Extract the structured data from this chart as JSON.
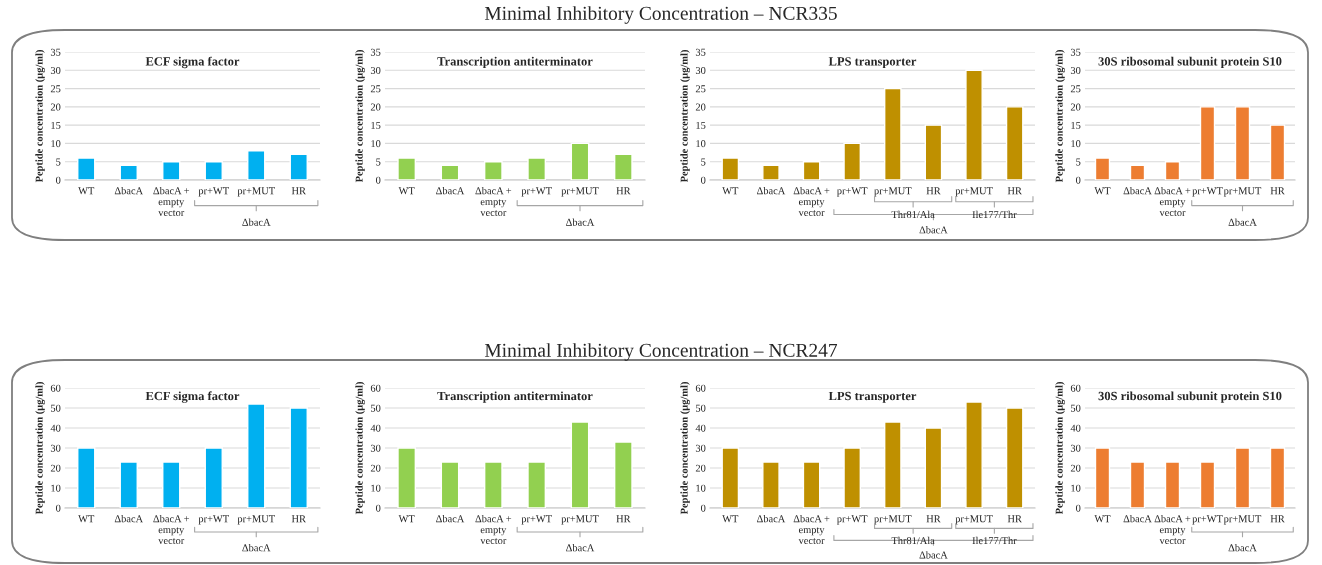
{
  "chart_data": [
    {
      "type": "bar",
      "title": "ECF sigma factor",
      "ylabel": "Peptide concentration (µg/ml)",
      "categories": [
        "WT",
        "ΔbacA",
        "ΔbacA +\nempty\nvector",
        "pr+WT",
        "pr+MUT",
        "HR"
      ],
      "values": [
        6,
        4,
        5,
        5,
        8,
        7
      ],
      "color": "#00b0f0",
      "ylim": [
        0,
        35
      ],
      "yticks": [
        0,
        5,
        10,
        15,
        20,
        25,
        30,
        35
      ],
      "grid": "y",
      "annotations": [
        "ΔbacA",
        "Minimal Inhibitory Concentration – NCR335"
      ]
    },
    {
      "type": "bar",
      "title": "Transcription antiterminator",
      "ylabel": "Peptide concentration (µg/ml)",
      "categories": [
        "WT",
        "ΔbacA",
        "ΔbacA +\nempty\nvector",
        "pr+WT",
        "pr+MUT",
        "HR"
      ],
      "values": [
        6,
        4,
        5,
        6,
        10,
        7
      ],
      "color": "#92d050",
      "ylim": [
        0,
        35
      ],
      "yticks": [
        0,
        5,
        10,
        15,
        20,
        25,
        30,
        35
      ],
      "grid": "y",
      "annotations": [
        "ΔbacA"
      ]
    },
    {
      "type": "bar",
      "title": "LPS transporter",
      "ylabel": "Peptide concentration (µg/ml)",
      "categories": [
        "WT",
        "ΔbacA",
        "ΔbacA +\nempty\nvector",
        "pr+WT",
        "pr+MUT",
        "HR",
        "pr+MUT",
        "HR"
      ],
      "values": [
        6,
        4,
        5,
        10,
        25,
        15,
        30,
        20
      ],
      "color": "#bf9000",
      "ylim": [
        0,
        35
      ],
      "yticks": [
        0,
        5,
        10,
        15,
        20,
        25,
        30,
        35
      ],
      "grid": "y",
      "annotations": [
        "Thr81/Ala",
        "Ile177/Thr",
        "ΔbacA"
      ]
    },
    {
      "type": "bar",
      "title": "30S ribosomal subunit protein S10",
      "ylabel": "Peptide concentration (µg/ml)",
      "categories": [
        "WT",
        "ΔbacA",
        "ΔbacA +\nempty\nvector",
        "pr+WT",
        "pr+MUT",
        "HR"
      ],
      "values": [
        6,
        4,
        5,
        20,
        20,
        15
      ],
      "color": "#ed7d31",
      "ylim": [
        0,
        35
      ],
      "yticks": [
        0,
        5,
        10,
        15,
        20,
        25,
        30,
        35
      ],
      "grid": "y",
      "annotations": [
        "ΔbacA"
      ]
    },
    {
      "type": "bar",
      "title": "ECF sigma factor",
      "ylabel": "Peptide concentration (µg/ml)",
      "categories": [
        "WT",
        "ΔbacA",
        "ΔbacA +\nempty\nvector",
        "pr+WT",
        "pr+MUT",
        "HR"
      ],
      "values": [
        30,
        23,
        23,
        30,
        52,
        50
      ],
      "color": "#00b0f0",
      "ylim": [
        0,
        60
      ],
      "yticks": [
        0,
        10,
        20,
        30,
        40,
        50,
        60
      ],
      "grid": "y",
      "annotations": [
        "ΔbacA",
        "Minimal Inhibitory Concentration – NCR247"
      ]
    },
    {
      "type": "bar",
      "title": "Transcription antiterminator",
      "ylabel": "Peptide concentration (µg/ml)",
      "categories": [
        "WT",
        "ΔbacA",
        "ΔbacA +\nempty\nvector",
        "pr+WT",
        "pr+MUT",
        "HR"
      ],
      "values": [
        30,
        23,
        23,
        23,
        43,
        33
      ],
      "color": "#92d050",
      "ylim": [
        0,
        60
      ],
      "yticks": [
        0,
        10,
        20,
        30,
        40,
        50,
        60
      ],
      "grid": "y",
      "annotations": [
        "ΔbacA"
      ]
    },
    {
      "type": "bar",
      "title": "LPS transporter",
      "ylabel": "Peptide concentration (µg/ml)",
      "categories": [
        "WT",
        "ΔbacA",
        "ΔbacA +\nempty\nvector",
        "pr+WT",
        "pr+MUT",
        "HR",
        "pr+MUT",
        "HR"
      ],
      "values": [
        30,
        23,
        23,
        30,
        43,
        40,
        53,
        50
      ],
      "color": "#bf9000",
      "ylim": [
        0,
        60
      ],
      "yticks": [
        0,
        10,
        20,
        30,
        40,
        50,
        60
      ],
      "grid": "y",
      "annotations": [
        "Thr81/Ala",
        "Ile177/Thr",
        "ΔbacA"
      ]
    },
    {
      "type": "bar",
      "title": "30S ribosomal subunit protein S10",
      "ylabel": "Peptide concentration (µg/ml)",
      "categories": [
        "WT",
        "ΔbacA",
        "ΔbacA +\nempty\nvector",
        "pr+WT",
        "pr+MUT",
        "HR"
      ],
      "values": [
        30,
        23,
        23,
        23,
        30,
        30
      ],
      "color": "#ed7d31",
      "ylim": [
        0,
        60
      ],
      "yticks": [
        0,
        10,
        20,
        30,
        40,
        50,
        60
      ],
      "grid": "y",
      "annotations": [
        "ΔbacA"
      ]
    }
  ]
}
